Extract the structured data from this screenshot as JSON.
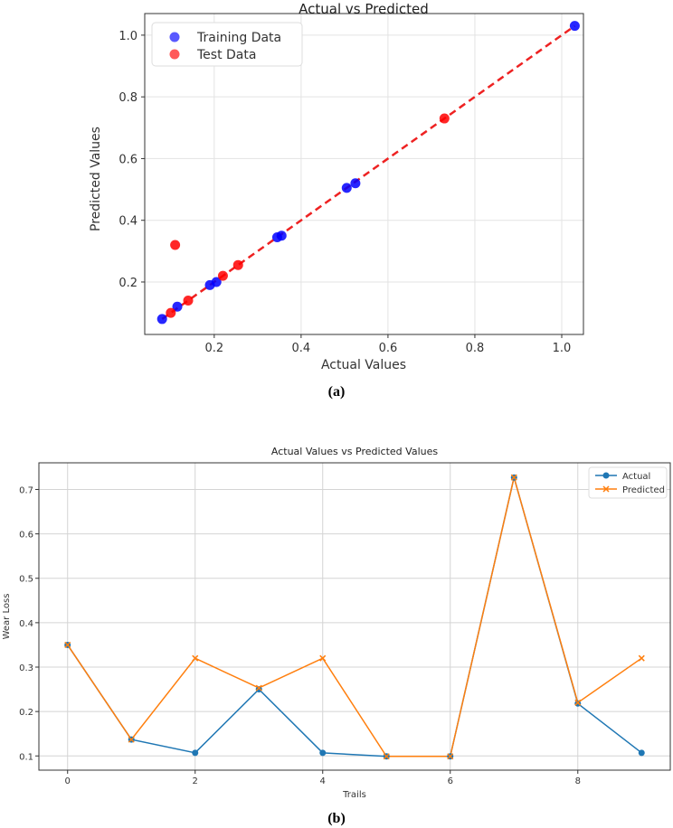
{
  "chart_data": [
    {
      "type": "scatter",
      "title": "Actual vs Predicted",
      "xlabel": "Actual Values",
      "ylabel": "Predicted Values",
      "caption": "(a)",
      "xlim": [
        0.04,
        1.05
      ],
      "ylim": [
        0.03,
        1.07
      ],
      "xticks": [
        "0.2",
        "0.4",
        "0.6",
        "0.8",
        "1.0"
      ],
      "yticks": [
        "0.2",
        "0.4",
        "0.6",
        "0.8",
        "1.0"
      ],
      "grid": true,
      "legend_position": "top-left",
      "series": [
        {
          "name": "Training Data",
          "color": "#0000ff",
          "points": [
            [
              0.08,
              0.08
            ],
            [
              0.115,
              0.12
            ],
            [
              0.19,
              0.19
            ],
            [
              0.205,
              0.2
            ],
            [
              0.345,
              0.345
            ],
            [
              0.355,
              0.35
            ],
            [
              0.505,
              0.505
            ],
            [
              0.525,
              0.52
            ],
            [
              1.03,
              1.03
            ]
          ]
        },
        {
          "name": "Test Data",
          "color": "#ff0000",
          "points": [
            [
              0.1,
              0.1
            ],
            [
              0.11,
              0.32
            ],
            [
              0.14,
              0.14
            ],
            [
              0.22,
              0.22
            ],
            [
              0.255,
              0.255
            ],
            [
              0.73,
              0.73
            ]
          ]
        }
      ],
      "reference_line": {
        "from": [
          0.08,
          0.08
        ],
        "to": [
          1.03,
          1.03
        ],
        "color": "#ee2222"
      }
    },
    {
      "type": "line",
      "title": "Actual Values vs Predicted Values",
      "xlabel": "Trails",
      "ylabel": "Wear Loss",
      "caption": "(b)",
      "xlim": [
        -0.45,
        9.45
      ],
      "ylim": [
        0.068,
        0.76
      ],
      "xticks": [
        "0",
        "2",
        "4",
        "6",
        "8"
      ],
      "yticks": [
        "0.1",
        "0.2",
        "0.3",
        "0.4",
        "0.5",
        "0.6",
        "0.7"
      ],
      "grid": true,
      "legend_position": "top-right",
      "x": [
        0,
        1,
        2,
        3,
        4,
        5,
        6,
        7,
        8,
        9
      ],
      "series": [
        {
          "name": "Actual",
          "color": "#1f77b4",
          "values": [
            0.35,
            0.137,
            0.107,
            0.25,
            0.107,
            0.099,
            0.099,
            0.727,
            0.218,
            0.107
          ]
        },
        {
          "name": "Predicted",
          "color": "#ff7f0e",
          "values": [
            0.35,
            0.137,
            0.32,
            0.253,
            0.32,
            0.099,
            0.099,
            0.727,
            0.22,
            0.32
          ]
        }
      ]
    }
  ]
}
